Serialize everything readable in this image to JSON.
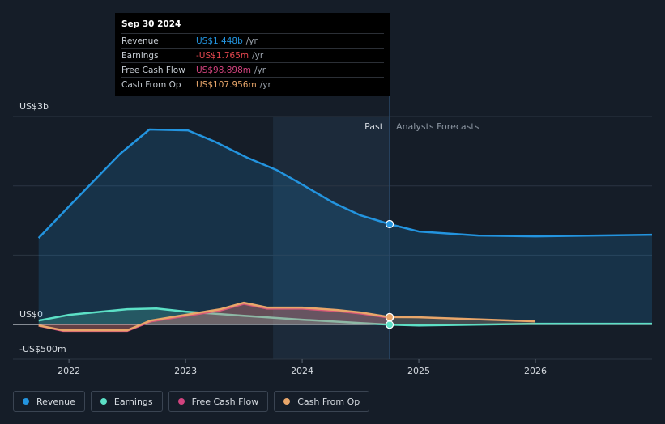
{
  "chart_data": {
    "type": "line",
    "xlim": [
      2021.52,
      2027
    ],
    "xticks": [
      2022,
      2023,
      2024,
      2025,
      2026
    ],
    "ylim": [
      -500,
      3000
    ],
    "yticks": [
      {
        "value": 3000,
        "label": "US$3b"
      },
      {
        "value": 0,
        "label": "US$0"
      },
      {
        "value": -500,
        "label": "-US$500m"
      }
    ],
    "minor_grid": [
      1000,
      2000
    ],
    "grid": true,
    "highlight_x": 2024.75,
    "highlight_band": [
      2023.75,
      2024.75
    ],
    "past_label": "Past",
    "forecast_label": "Analysts Forecasts",
    "tooltip": {
      "date": "Sep 30 2024",
      "rows": [
        {
          "label": "Revenue",
          "value": "US$1.448b",
          "unit": "/yr",
          "color": "#2394df"
        },
        {
          "label": "Earnings",
          "value": "-US$1.765m",
          "unit": "/yr",
          "color": "#e6474f"
        },
        {
          "label": "Free Cash Flow",
          "value": "US$98.898m",
          "unit": "/yr",
          "color": "#d1437e"
        },
        {
          "label": "Cash From Op",
          "value": "US$107.956m",
          "unit": "/yr",
          "color": "#e8a66a"
        }
      ]
    },
    "series": [
      {
        "name": "Revenue",
        "color": "#2394df",
        "x": [
          2021.74,
          2022.0,
          2022.44,
          2022.69,
          2023.02,
          2023.25,
          2023.53,
          2023.78,
          2024.0,
          2024.26,
          2024.5,
          2024.75,
          2025.0,
          2025.51,
          2026.0,
          2026.51,
          2027.0
        ],
        "values": [
          1249,
          1704,
          2463,
          2813,
          2801,
          2638,
          2405,
          2229,
          2019,
          1763,
          1576,
          1448,
          1342,
          1284,
          1272,
          1284,
          1296
        ]
      },
      {
        "name": "Earnings",
        "color": "#5ce0c6",
        "x": [
          2021.74,
          2022.0,
          2022.5,
          2022.75,
          2023.0,
          2023.5,
          2024.0,
          2024.5,
          2024.75,
          2025.0,
          2026.0,
          2027.0
        ],
        "values": [
          58,
          140,
          222,
          233,
          187,
          128,
          70,
          23,
          -1.765,
          -12,
          12,
          12
        ]
      },
      {
        "name": "Free Cash Flow",
        "color": "#d1437e",
        "x": [
          2021.74,
          2021.95,
          2022.5,
          2022.7,
          2023.0,
          2023.3,
          2023.5,
          2023.7,
          2024.0,
          2024.3,
          2024.5,
          2024.75
        ],
        "values": [
          -15,
          -90,
          -90,
          45,
          125,
          205,
          300,
          230,
          230,
          195,
          160,
          98.898
        ]
      },
      {
        "name": "Cash From Op",
        "color": "#e8a66a",
        "x": [
          2021.74,
          2021.95,
          2022.5,
          2022.7,
          2023.0,
          2023.3,
          2023.5,
          2023.7,
          2024.0,
          2024.3,
          2024.5,
          2024.75,
          2025.0,
          2026.0
        ],
        "values": [
          -12,
          -82,
          -82,
          58,
          140,
          222,
          315,
          245,
          245,
          210,
          175,
          107.956,
          105,
          47
        ]
      }
    ]
  }
}
